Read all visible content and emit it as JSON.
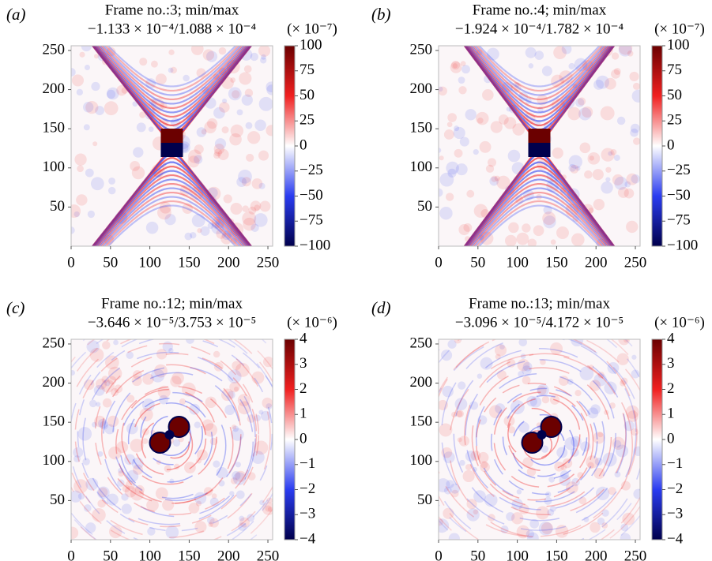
{
  "chart_data": [
    {
      "type": "heatmap",
      "panel_label": "(a)",
      "title": "Frame no.:3; min/max",
      "subtitle": "−1.133 × 10⁻⁴/1.088 × 10⁻⁴",
      "colorbar_label": "(× 10⁻⁷)",
      "xlim": [
        0,
        256
      ],
      "ylim": [
        0,
        256
      ],
      "xticks": [
        0,
        50,
        100,
        150,
        200,
        250
      ],
      "yticks": [
        50,
        100,
        150,
        200,
        250
      ],
      "clim": [
        -100,
        100
      ],
      "cticks": [
        100,
        75,
        50,
        25,
        0,
        {
          "value": -25,
          "label": "−25"
        },
        {
          "value": -50,
          "label": "−50"
        },
        {
          "value": -75,
          "label": "−75"
        },
        {
          "value": -100,
          "label": "−100"
        }
      ],
      "colors": [
        "#00004c",
        "#2a3cf0",
        "#ffffff",
        "#f02020",
        "#6b0000"
      ]
    },
    {
      "type": "heatmap",
      "panel_label": "(b)",
      "title": "Frame no.:4; min/max",
      "subtitle": "−1.924 × 10⁻⁴/1.782 × 10⁻⁴",
      "colorbar_label": "(× 10⁻⁷)",
      "xlim": [
        0,
        256
      ],
      "ylim": [
        0,
        256
      ],
      "xticks": [
        0,
        50,
        100,
        150,
        200,
        250
      ],
      "yticks": [
        50,
        100,
        150,
        200,
        250
      ],
      "clim": [
        -100,
        100
      ],
      "cticks": [
        100,
        75,
        50,
        25,
        0,
        {
          "value": -25,
          "label": "−25"
        },
        {
          "value": -50,
          "label": "−50"
        },
        {
          "value": -75,
          "label": "−75"
        },
        {
          "value": -100,
          "label": "−100"
        }
      ],
      "colors": [
        "#00004c",
        "#2a3cf0",
        "#ffffff",
        "#f02020",
        "#6b0000"
      ]
    },
    {
      "type": "heatmap",
      "panel_label": "(c)",
      "title": "Frame no.:12; min/max",
      "subtitle": "−3.646 × 10⁻⁵/3.753 × 10⁻⁵",
      "colorbar_label": "(× 10⁻⁶)",
      "xlim": [
        0,
        256
      ],
      "ylim": [
        0,
        256
      ],
      "xticks": [
        0,
        50,
        100,
        150,
        200,
        250
      ],
      "yticks": [
        50,
        100,
        150,
        200,
        250
      ],
      "clim": [
        -4,
        4
      ],
      "cticks": [
        4,
        3,
        2,
        1,
        0,
        {
          "value": -1,
          "label": "−1"
        },
        {
          "value": -2,
          "label": "−2"
        },
        {
          "value": -3,
          "label": "−3"
        },
        {
          "value": -4,
          "label": "−4"
        }
      ],
      "colors": [
        "#00004c",
        "#2a3cf0",
        "#ffffff",
        "#f02020",
        "#6b0000"
      ]
    },
    {
      "type": "heatmap",
      "panel_label": "(d)",
      "title": "Frame no.:13; min/max",
      "subtitle": "−3.096 × 10⁻⁵/4.172 × 10⁻⁵",
      "colorbar_label": "(× 10⁻⁶)",
      "xlim": [
        0,
        256
      ],
      "ylim": [
        0,
        256
      ],
      "xticks": [
        0,
        50,
        100,
        150,
        200,
        250
      ],
      "yticks": [
        50,
        100,
        150,
        200,
        250
      ],
      "clim": [
        -4,
        4
      ],
      "cticks": [
        4,
        3,
        2,
        1,
        0,
        {
          "value": -1,
          "label": "−1"
        },
        {
          "value": -2,
          "label": "−2"
        },
        {
          "value": -3,
          "label": "−3"
        },
        {
          "value": -4,
          "label": "−4"
        }
      ],
      "colors": [
        "#00004c",
        "#2a3cf0",
        "#ffffff",
        "#f02020",
        "#6b0000"
      ]
    }
  ]
}
